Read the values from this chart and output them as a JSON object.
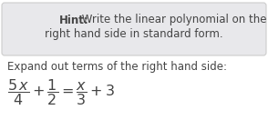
{
  "hint_bold": "Hint:",
  "hint_line1": " Write the linear polynomial on the",
  "hint_line2": "right hand side in standard form.",
  "expand_label": "Expand out terms of the right hand side:",
  "hint_box_color": "#e8e8eb",
  "hint_box_border": "#cccccc",
  "text_color": "#444444",
  "main_bg": "#ffffff",
  "font_size_hint": 8.5,
  "font_size_expand": 8.5,
  "font_size_eq": 11.5
}
